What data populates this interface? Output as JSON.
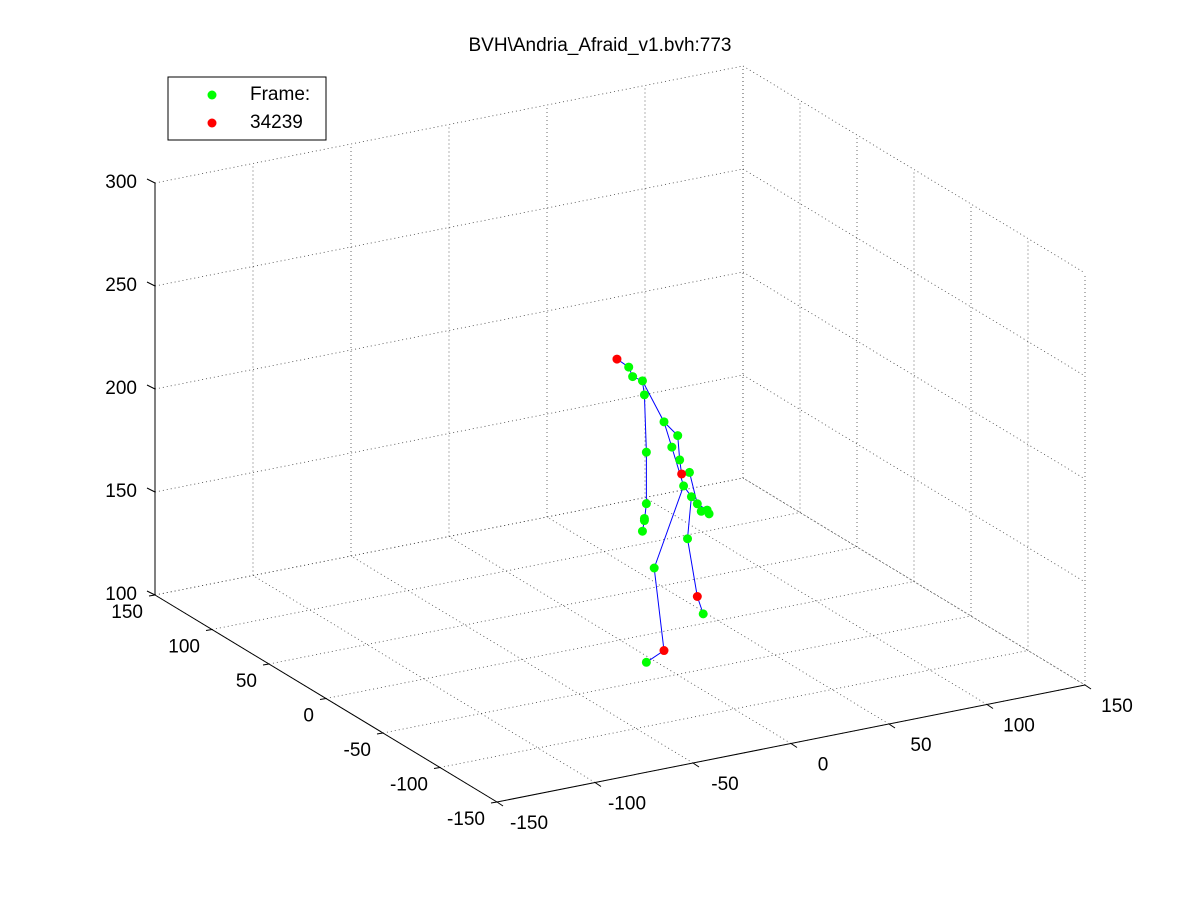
{
  "chart_data": {
    "type": "scatter3d",
    "title": "BVH\\Andria_Afraid_v1.bvh:773",
    "xlim": [
      -150,
      150
    ],
    "ylim": [
      -150,
      150
    ],
    "zlim": [
      100,
      300
    ],
    "xticks": [
      -150,
      -100,
      -50,
      0,
      50,
      100,
      150
    ],
    "yticks": [
      -150,
      -100,
      -50,
      0,
      50,
      100,
      150
    ],
    "zticks": [
      100,
      150,
      200,
      250,
      300
    ],
    "grid": true,
    "legend": "upper left",
    "series": [
      {
        "name": "Frame:",
        "color": "#00ff00",
        "x": [
          -13,
          -11,
          -6,
          -5,
          5,
          9,
          12,
          13,
          18,
          15,
          19,
          22,
          27,
          28,
          24,
          -4,
          -4,
          -5,
          -6,
          -5,
          0,
          -4,
          17,
          25
        ],
        "y": [
          -30,
          -30,
          -30,
          -30,
          -30,
          -30,
          -30,
          -30,
          -30,
          -30,
          -30,
          -30,
          -30,
          -30,
          -30,
          -30,
          -30,
          -30,
          -30,
          -30,
          -30,
          -30,
          -30,
          -30
        ],
        "z": [
          245,
          240,
          237,
          230,
          215,
          202,
          207,
          195,
          188,
          182,
          176,
          172,
          168,
          166,
          168,
          202,
          177,
          170,
          164,
          169,
          145,
          100,
          156,
          118
        ]
      },
      {
        "name": "34239",
        "color": "#ff0000",
        "x": [
          -19,
          14,
          5,
          22
        ],
        "y": [
          -30,
          -30,
          -30,
          -30
        ],
        "z": [
          250,
          188,
          104,
          127
        ]
      }
    ],
    "lines": {
      "color": "#0000ff",
      "x": [
        -19,
        -13,
        -11,
        -6,
        -5,
        -4,
        -4,
        -5,
        -6,
        null,
        -6,
        5,
        12,
        13,
        14,
        18,
        22,
        27,
        null,
        5,
        9,
        15,
        19,
        24,
        28,
        null,
        15,
        0,
        5,
        -4,
        null,
        19,
        17,
        22,
        25
      ],
      "y": [
        -30,
        -30,
        -30,
        -30,
        -30,
        -30,
        -30,
        -30,
        -30,
        null,
        -30,
        -30,
        -30,
        -30,
        -30,
        -30,
        -30,
        -30,
        null,
        -30,
        -30,
        -30,
        -30,
        -30,
        -30,
        null,
        -30,
        -30,
        -30,
        -30,
        null,
        -30,
        -30,
        -30,
        -30
      ],
      "z": [
        250,
        245,
        240,
        237,
        230,
        202,
        177,
        169,
        164,
        null,
        237,
        215,
        207,
        195,
        188,
        188,
        172,
        168,
        null,
        215,
        202,
        182,
        176,
        168,
        166,
        null,
        182,
        145,
        104,
        100,
        null,
        176,
        156,
        127,
        118
      ]
    }
  }
}
